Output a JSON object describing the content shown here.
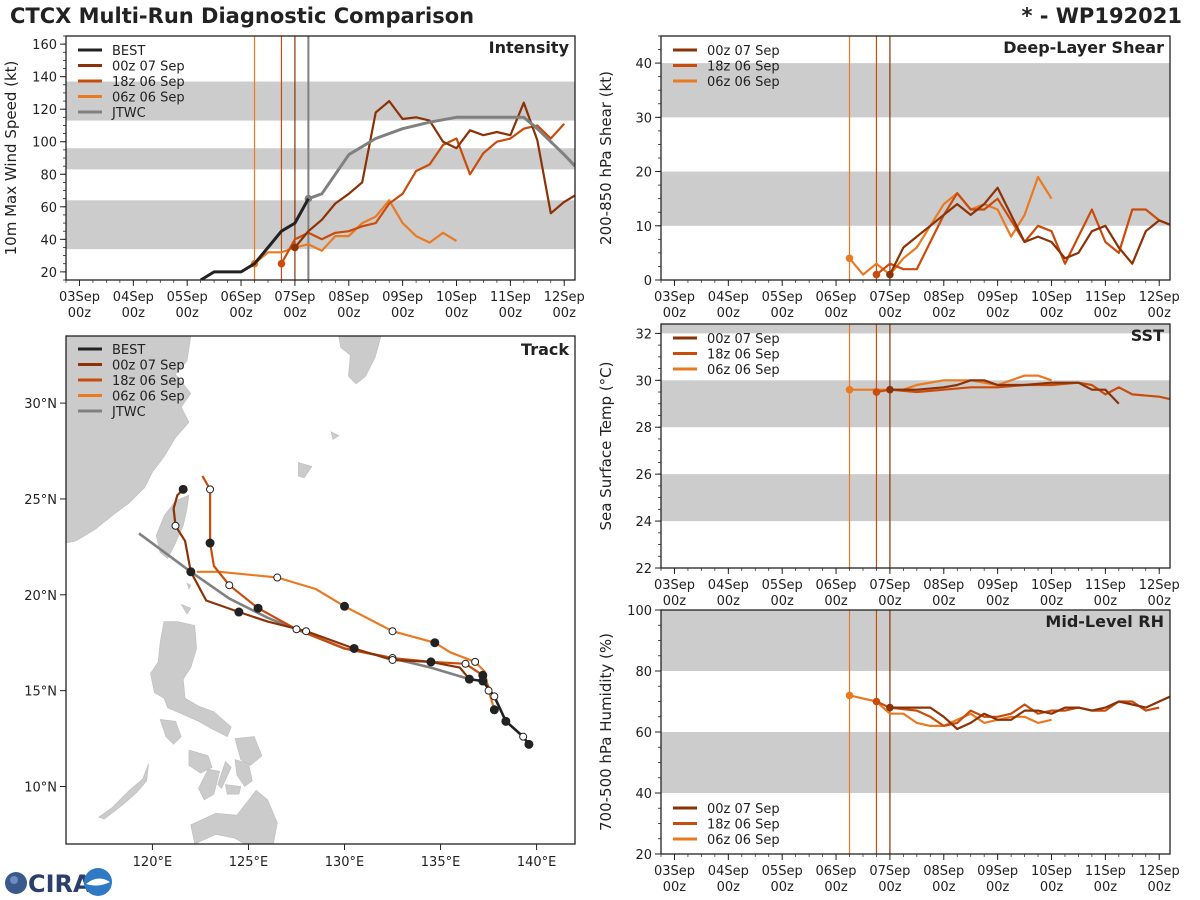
{
  "header": {
    "title": "CTCX Multi-Run Diagnostic Comparison",
    "storm_id": "* - WP192021"
  },
  "logo": {
    "text": "CIRA"
  },
  "colors": {
    "best": "#222222",
    "run00z07": "#8b3206",
    "run18z06": "#c94c0c",
    "run06z06": "#ea7a22",
    "jtwc": "#808080",
    "band": "#cccccc"
  },
  "x_ticks": [
    "03Sep",
    "04Sep",
    "05Sep",
    "06Sep",
    "07Sep",
    "08Sep",
    "09Sep",
    "10Sep",
    "11Sep",
    "12Sep"
  ],
  "x_tick_hour": "00z",
  "chart_data": [
    {
      "type": "line",
      "id": "intensity",
      "title": "Intensity",
      "ylabel": "10m Max Wind Speed (kt)",
      "xlim": [
        2.75,
        12.2
      ],
      "ylim": [
        15,
        165
      ],
      "yticks": [
        20,
        40,
        60,
        80,
        100,
        120,
        140,
        160
      ],
      "bands": [
        [
          34,
          64
        ],
        [
          83,
          96
        ],
        [
          113,
          137
        ]
      ],
      "init_times": [
        {
          "name": "00z 07 Sep",
          "x": 7.0
        },
        {
          "name": "18z 06 Sep",
          "x": 6.75
        },
        {
          "name": "06z 06 Sep",
          "x": 6.25
        }
      ],
      "vlines": [
        {
          "series": "06z 06 Sep",
          "x": 6.25
        },
        {
          "series": "18z 06 Sep",
          "x": 6.75
        },
        {
          "series": "00z 07 Sep",
          "x": 7.0
        },
        {
          "series": "JTWC",
          "x": 7.25
        }
      ],
      "legend": [
        "BEST",
        "00z 07 Sep",
        "18z 06 Sep",
        "06z 06 Sep",
        "JTWC"
      ],
      "series": [
        {
          "name": "BEST",
          "x": [
            5.25,
            5.5,
            6.0,
            6.25,
            6.5,
            6.75,
            7.0,
            7.25
          ],
          "y": [
            15,
            20,
            20,
            25,
            35,
            45,
            50,
            65
          ]
        },
        {
          "name": "JTWC",
          "x": [
            7.25,
            7.5,
            7.75,
            8.0,
            8.5,
            9.0,
            9.5,
            10.0,
            10.5,
            11.0,
            11.25,
            11.5,
            12.0,
            12.2
          ],
          "y": [
            65,
            68,
            80,
            92,
            102,
            108,
            112,
            115,
            115,
            115,
            115,
            108,
            92,
            85
          ]
        },
        {
          "name": "00z 07 Sep",
          "x": [
            7.0,
            7.25,
            7.5,
            7.75,
            8.0,
            8.25,
            8.5,
            8.75,
            9.0,
            9.25,
            9.5,
            9.75,
            10.0,
            10.25,
            10.5,
            10.75,
            11.0,
            11.25,
            11.5,
            11.75,
            12.0,
            12.25,
            12.5
          ],
          "y": [
            35,
            45,
            52,
            62,
            68,
            75,
            118,
            125,
            114,
            115,
            113,
            100,
            96,
            107,
            104,
            106,
            104,
            124,
            101,
            56,
            63,
            68,
            75
          ]
        },
        {
          "name": "18z 06 Sep",
          "x": [
            6.75,
            7.0,
            7.25,
            7.5,
            7.75,
            8.0,
            8.25,
            8.5,
            8.75,
            9.0,
            9.25,
            9.5,
            9.75,
            10.0,
            10.25,
            10.5,
            10.75,
            11.0,
            11.25,
            11.5,
            11.75,
            12.0
          ],
          "y": [
            25,
            40,
            44,
            40,
            44,
            45,
            48,
            50,
            62,
            68,
            82,
            86,
            98,
            102,
            80,
            93,
            100,
            102,
            108,
            110,
            102,
            111
          ]
        },
        {
          "name": "06z 06 Sep",
          "x": [
            6.25,
            6.5,
            6.75,
            7.0,
            7.25,
            7.5,
            7.75,
            8.0,
            8.25,
            8.5,
            8.75,
            9.0,
            9.25,
            9.5,
            9.75,
            10.0
          ],
          "y": [
            25,
            32,
            32,
            35,
            37,
            33,
            42,
            42,
            50,
            54,
            64,
            50,
            42,
            38,
            44,
            39
          ]
        }
      ]
    },
    {
      "type": "line",
      "id": "shear",
      "title": "Deep-Layer Shear",
      "ylabel": "200-850 hPa Shear (kt)",
      "xlim": [
        2.75,
        12.2
      ],
      "ylim": [
        0,
        45
      ],
      "yticks": [
        0,
        10,
        20,
        30,
        40
      ],
      "bands": [
        [
          10,
          20
        ],
        [
          30,
          40
        ]
      ],
      "init_times": [
        {
          "name": "00z 07 Sep",
          "x": 7.0
        },
        {
          "name": "18z 06 Sep",
          "x": 6.75
        },
        {
          "name": "06z 06 Sep",
          "x": 6.25
        }
      ],
      "legend": [
        "00z 07 Sep",
        "18z 06 Sep",
        "06z 06 Sep"
      ],
      "series": [
        {
          "name": "00z 07 Sep",
          "x": [
            7.0,
            7.25,
            7.5,
            7.75,
            8.0,
            8.25,
            8.5,
            8.75,
            9.0,
            9.25,
            9.5,
            9.75,
            10.0,
            10.25,
            10.5,
            10.75,
            11.0,
            11.25,
            11.5,
            11.75,
            12.0,
            12.25
          ],
          "y": [
            1,
            6,
            8,
            10,
            12,
            14,
            12,
            14,
            17,
            12,
            7,
            8,
            7,
            4,
            5,
            9,
            10,
            6,
            3,
            9,
            11,
            10
          ]
        },
        {
          "name": "18z 06 Sep",
          "x": [
            6.75,
            7.0,
            7.25,
            7.5,
            7.75,
            8.0,
            8.25,
            8.5,
            8.75,
            9.0,
            9.25,
            9.5,
            9.75,
            10.0,
            10.25,
            10.5,
            10.75,
            11.0,
            11.25,
            11.5,
            11.75,
            12.0,
            12.25
          ],
          "y": [
            1,
            3,
            2,
            2,
            7,
            12,
            16,
            13,
            13,
            15,
            11,
            7,
            10,
            9,
            3,
            8,
            13,
            7,
            5,
            13,
            13,
            11,
            10
          ]
        },
        {
          "name": "06z 06 Sep",
          "x": [
            6.25,
            6.5,
            6.75,
            7.0,
            7.25,
            7.5,
            7.75,
            8.0,
            8.25,
            8.5,
            8.75,
            9.0,
            9.25,
            9.5,
            9.75,
            10.0
          ],
          "y": [
            4,
            1,
            3,
            1,
            4,
            6,
            10,
            14,
            16,
            13,
            14,
            13,
            8,
            12,
            19,
            15
          ]
        }
      ]
    },
    {
      "type": "line",
      "id": "sst",
      "title": "SST",
      "ylabel": "Sea Surface Temp (°C)",
      "xlim": [
        2.75,
        12.2
      ],
      "ylim": [
        22,
        32.4
      ],
      "yticks": [
        22,
        24,
        26,
        28,
        30,
        32
      ],
      "bands": [
        [
          24,
          26
        ],
        [
          28,
          30
        ],
        [
          32,
          32.4
        ]
      ],
      "init_times": [
        {
          "name": "00z 07 Sep",
          "x": 7.0
        },
        {
          "name": "18z 06 Sep",
          "x": 6.75
        },
        {
          "name": "06z 06 Sep",
          "x": 6.25
        }
      ],
      "legend": [
        "00z 07 Sep",
        "18z 06 Sep",
        "06z 06 Sep"
      ],
      "series": [
        {
          "name": "00z 07 Sep",
          "x": [
            7.0,
            7.5,
            8.0,
            8.25,
            8.5,
            8.75,
            9.0,
            9.5,
            10.0,
            10.25,
            10.5,
            10.75,
            11.0,
            11.25
          ],
          "y": [
            29.6,
            29.6,
            29.7,
            29.8,
            30.0,
            30.0,
            29.8,
            29.8,
            29.9,
            29.9,
            29.9,
            29.6,
            29.6,
            29.0
          ]
        },
        {
          "name": "18z 06 Sep",
          "x": [
            6.75,
            7.0,
            7.5,
            8.0,
            8.5,
            9.0,
            9.5,
            10.0,
            10.5,
            10.75,
            11.0,
            11.25,
            11.5,
            12.0,
            12.2
          ],
          "y": [
            29.5,
            29.6,
            29.5,
            29.6,
            29.7,
            29.7,
            29.8,
            29.8,
            29.9,
            29.8,
            29.4,
            29.7,
            29.4,
            29.3,
            29.2
          ]
        },
        {
          "name": "06z 06 Sep",
          "x": [
            6.25,
            6.75,
            7.25,
            7.5,
            8.0,
            8.5,
            9.0,
            9.5,
            9.75,
            10.0
          ],
          "y": [
            29.6,
            29.6,
            29.6,
            29.8,
            30.0,
            30.0,
            29.8,
            30.2,
            30.2,
            30.0
          ]
        }
      ]
    },
    {
      "type": "line",
      "id": "rh",
      "title": "Mid-Level RH",
      "ylabel": "700-500 hPa Humidity (%)",
      "xlim": [
        2.75,
        12.2
      ],
      "ylim": [
        20,
        100
      ],
      "yticks": [
        20,
        40,
        60,
        80,
        100
      ],
      "bands": [
        [
          40,
          60
        ],
        [
          80,
          100
        ]
      ],
      "init_times": [
        {
          "name": "00z 07 Sep",
          "x": 7.0
        },
        {
          "name": "18z 06 Sep",
          "x": 6.75
        },
        {
          "name": "06z 06 Sep",
          "x": 6.25
        }
      ],
      "legend": [
        "00z 07 Sep",
        "18z 06 Sep",
        "06z 06 Sep"
      ],
      "series": [
        {
          "name": "00z 07 Sep",
          "x": [
            7.0,
            7.5,
            7.75,
            8.0,
            8.25,
            8.5,
            8.75,
            9.0,
            9.25,
            9.5,
            9.75,
            10.0,
            10.25,
            10.5,
            10.75,
            11.0,
            11.25,
            11.5,
            11.75,
            12.0,
            12.25
          ],
          "y": [
            68,
            68,
            68,
            65,
            61,
            63,
            66,
            64,
            64,
            67,
            67,
            66,
            68,
            68,
            67,
            68,
            70,
            69,
            68,
            70,
            72
          ]
        },
        {
          "name": "18z 06 Sep",
          "x": [
            6.75,
            7.0,
            7.5,
            7.75,
            8.0,
            8.25,
            8.5,
            8.75,
            9.0,
            9.25,
            9.5,
            9.75,
            10.0,
            10.25,
            10.5,
            10.75,
            11.0,
            11.25,
            11.5,
            11.75,
            12.0
          ],
          "y": [
            70,
            68,
            67,
            65,
            62,
            63,
            67,
            65,
            65,
            66,
            69,
            66,
            67,
            67,
            68,
            67,
            67,
            70,
            70,
            67,
            68
          ]
        },
        {
          "name": "06z 06 Sep",
          "x": [
            6.25,
            6.75,
            7.0,
            7.25,
            7.5,
            7.75,
            8.0,
            8.25,
            8.5,
            8.75,
            9.0,
            9.25,
            9.5,
            9.75,
            10.0
          ],
          "y": [
            72,
            70,
            66,
            66,
            63,
            62,
            62,
            64,
            66,
            63,
            64,
            65,
            65,
            63,
            64
          ]
        }
      ]
    },
    {
      "type": "scatter",
      "id": "track",
      "title": "Track",
      "xlim": [
        115.5,
        142
      ],
      "ylim": [
        7,
        33.5
      ],
      "xticks": [
        120,
        125,
        130,
        135,
        140
      ],
      "xtick_labels": [
        "120°E",
        "125°E",
        "130°E",
        "135°E",
        "140°E"
      ],
      "yticks": [
        10,
        15,
        20,
        25,
        30
      ],
      "ytick_labels": [
        "10°N",
        "15°N",
        "20°N",
        "25°N",
        "30°N"
      ],
      "legend": [
        "BEST",
        "00z 07 Sep",
        "18z 06 Sep",
        "06z 06 Sep",
        "JTWC"
      ],
      "series": [
        {
          "name": "BEST",
          "lon": [
            139.6,
            139.3,
            138.4,
            137.8,
            137.2,
            136.5
          ],
          "lat": [
            12.2,
            12.6,
            13.4,
            14.7,
            15.5,
            15.6
          ],
          "markers": [
            "filled",
            "open",
            "filled",
            "open",
            "filled",
            "filled"
          ]
        },
        {
          "name": "JTWC",
          "lon": [
            136.5,
            134.5,
            132.0,
            130.0,
            128.0,
            126.0,
            124.0,
            122.0,
            119.3
          ],
          "lat": [
            15.6,
            16.2,
            16.8,
            17.2,
            18.0,
            18.8,
            19.8,
            21.2,
            23.2
          ]
        },
        {
          "name": "00z 07 Sep",
          "lon": [
            136.5,
            136.0,
            134.5,
            132.5,
            130.5,
            128.0,
            126.0,
            124.5,
            122.8,
            122.0,
            121.7,
            121.2,
            121.1,
            121.3,
            121.6
          ],
          "lat": [
            15.6,
            16.2,
            16.5,
            16.6,
            17.2,
            18.1,
            18.6,
            19.1,
            19.7,
            21.2,
            22.8,
            23.6,
            24.5,
            25.2,
            25.5
          ],
          "markers": [
            "none",
            "none",
            "filled",
            "open",
            "filled",
            "open",
            "none",
            "filled",
            "none",
            "filled",
            "none",
            "open",
            "none",
            "none",
            "filled"
          ]
        },
        {
          "name": "18z 06 Sep",
          "lon": [
            137.6,
            137.2,
            136.3,
            134.5,
            132.5,
            130.0,
            127.5,
            125.5,
            124.0,
            123.2,
            123.0,
            123.0,
            122.6
          ],
          "lat": [
            15.0,
            15.8,
            16.4,
            16.5,
            16.7,
            17.2,
            18.2,
            19.3,
            20.5,
            21.5,
            22.7,
            25.5,
            26.2
          ],
          "markers": [
            "none",
            "filled",
            "open",
            "none",
            "open",
            "none",
            "open",
            "filled",
            "open",
            "none",
            "filled",
            "open",
            "none"
          ]
        },
        {
          "name": "06z 06 Sep",
          "lon": [
            137.8,
            137.5,
            137.3,
            136.8,
            135.5,
            134.7,
            132.5,
            130.0,
            128.5,
            126.5,
            123.5,
            122.3
          ],
          "lat": [
            14.0,
            15.0,
            16.0,
            16.5,
            17.0,
            17.5,
            18.1,
            19.4,
            20.3,
            20.9,
            21.2,
            21.2
          ],
          "markers": [
            "filled",
            "open",
            "none",
            "open",
            "none",
            "filled",
            "open",
            "filled",
            "none",
            "open",
            "none",
            "none"
          ]
        }
      ]
    }
  ]
}
